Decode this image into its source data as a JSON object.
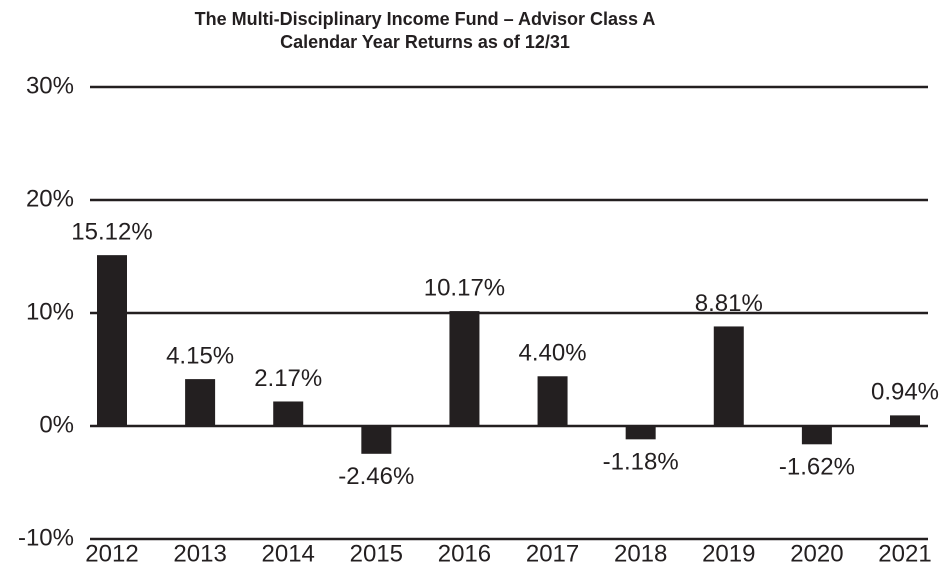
{
  "chart_data": {
    "type": "bar",
    "title": "The Multi-Disciplinary Income Fund – Advisor Class A",
    "subtitle": "Calendar Year Returns as of 12/31",
    "categories": [
      "2012",
      "2013",
      "2014",
      "2015",
      "2016",
      "2017",
      "2018",
      "2019",
      "2020",
      "2021"
    ],
    "values": [
      15.12,
      4.15,
      2.17,
      -2.46,
      10.17,
      4.4,
      -1.18,
      8.81,
      -1.62,
      0.94
    ],
    "value_labels": [
      "15.12%",
      "4.15%",
      "2.17%",
      "-2.46%",
      "10.17%",
      "4.40%",
      "-1.18%",
      "8.81%",
      "-1.62%",
      "0.94%"
    ],
    "color": "#231f20",
    "ylim": [
      -10,
      30
    ],
    "yticks": [
      {
        "value": -10,
        "label": "-10%"
      },
      {
        "value": 0,
        "label": "0%"
      },
      {
        "value": 10,
        "label": "10%"
      },
      {
        "value": 20,
        "label": "20%"
      },
      {
        "value": 30,
        "label": "30%"
      }
    ],
    "grid": true
  }
}
